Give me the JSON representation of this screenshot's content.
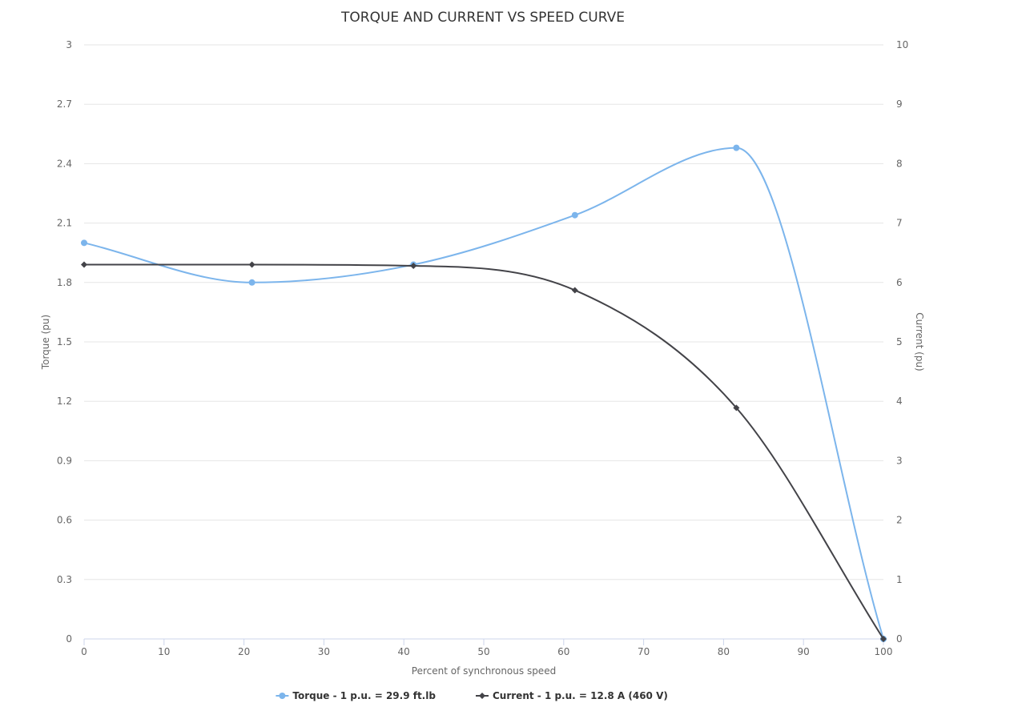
{
  "chart_data": {
    "type": "line",
    "title": "TORQUE AND CURRENT VS SPEED CURVE",
    "xlabel": "Percent of synchronous speed",
    "ylabel_left": "Torque (pu)",
    "ylabel_right": "Current (pu)",
    "xlim": [
      0,
      100
    ],
    "ylim_left": [
      0,
      3
    ],
    "ylim_right": [
      0,
      10
    ],
    "x_ticks": [
      "0",
      "10",
      "20",
      "30",
      "40",
      "50",
      "60",
      "70",
      "80",
      "90",
      "100"
    ],
    "y_left_ticks": [
      "0",
      "0.3",
      "0.6",
      "0.9",
      "1.2",
      "1.5",
      "1.8",
      "2.1",
      "2.4",
      "2.7",
      "3"
    ],
    "y_right_ticks": [
      "0",
      "1",
      "2",
      "3",
      "4",
      "5",
      "6",
      "7",
      "8",
      "9",
      "10"
    ],
    "grid": true,
    "legend_position": "bottom-center",
    "series": [
      {
        "name": "Torque - 1 p.u. = 29.9 ft.lb",
        "axis": "left",
        "color": "#7cb5ec",
        "marker": "circle",
        "x": [
          0,
          21,
          41.2,
          61.4,
          81.6,
          100
        ],
        "y": [
          2.0,
          1.8,
          1.89,
          2.14,
          2.48,
          0
        ]
      },
      {
        "name": "Current - 1 p.u. = 12.8 A (460 V)",
        "axis": "right",
        "color": "#434348",
        "marker": "diamond",
        "x": [
          0,
          21,
          41.2,
          61.4,
          81.6,
          100
        ],
        "y": [
          6.3,
          6.3,
          6.28,
          5.87,
          3.89,
          0
        ]
      }
    ]
  }
}
